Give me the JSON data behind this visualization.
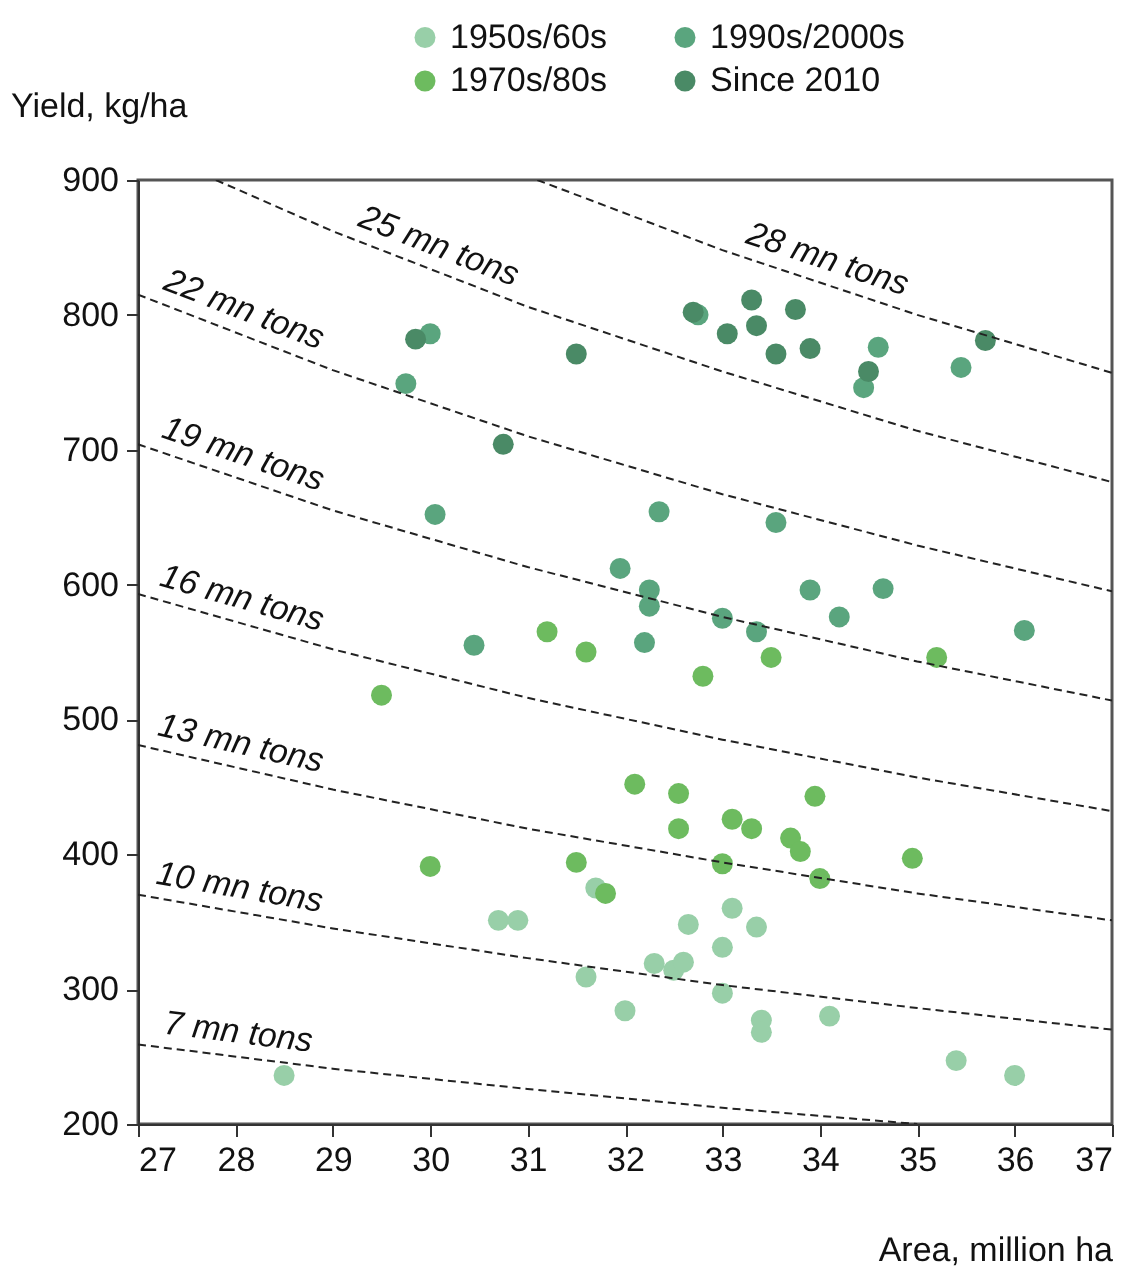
{
  "chart_data": {
    "type": "scatter",
    "ylabel": "Yield, kg/ha",
    "xlabel": "Area, million ha",
    "xlim": [
      27,
      37
    ],
    "xticks": [
      27,
      28,
      29,
      30,
      31,
      32,
      33,
      34,
      35,
      36,
      37
    ],
    "ylim": [
      200,
      900
    ],
    "yticks": [
      200,
      300,
      400,
      500,
      600,
      700,
      800,
      900
    ],
    "grid": false,
    "legend": "top",
    "marker": "circle",
    "series": [
      {
        "name": "1950s/60s",
        "color": "#98cfa8",
        "x": [
          28.5,
          30.7,
          30.9,
          31.7,
          31.6,
          32.0,
          32.3,
          32.5,
          32.6,
          32.65,
          33.0,
          33.0,
          33.1,
          33.35,
          33.4,
          33.4,
          34.1,
          35.4,
          36.0
        ],
        "values": [
          236,
          351,
          351,
          375,
          309,
          284,
          319,
          314,
          320,
          348,
          331,
          297,
          360,
          346,
          277,
          268,
          280,
          247,
          236
        ]
      },
      {
        "name": "1970s/80s",
        "color": "#6dbb5f",
        "x": [
          29.5,
          30.0,
          31.2,
          31.6,
          31.5,
          31.8,
          32.1,
          32.8,
          33.5,
          35.2,
          32.55,
          32.55,
          33.1,
          33.3,
          33.95,
          33.7,
          33.8,
          33.0,
          34.0,
          34.95
        ],
        "values": [
          518,
          391,
          565,
          550,
          394,
          371,
          452,
          532,
          546,
          546,
          445,
          419,
          426,
          419,
          443,
          412,
          402,
          393,
          382,
          397
        ]
      },
      {
        "name": "1990s/2000s",
        "color": "#5aa57e",
        "x": [
          30.0,
          29.75,
          30.05,
          31.95,
          30.45,
          32.75,
          34.6,
          34.45,
          35.45,
          32.35,
          33.55,
          32.25,
          32.25,
          33.9,
          34.65,
          34.2,
          33.0,
          33.35,
          36.1,
          32.2
        ],
        "values": [
          786,
          749,
          652,
          612,
          555,
          800,
          776,
          746,
          761,
          654,
          646,
          596,
          584,
          596,
          597,
          576,
          575,
          565,
          566,
          557
        ]
      },
      {
        "name": "Since 2010",
        "color": "#4a8a66",
        "x": [
          29.85,
          31.5,
          30.75,
          32.7,
          33.3,
          33.75,
          33.05,
          33.35,
          33.55,
          33.9,
          34.5,
          35.7
        ],
        "values": [
          782,
          771,
          704,
          802,
          811,
          804,
          786,
          792,
          771,
          775,
          758,
          781
        ]
      },
      {
        "name": "7 mn tons",
        "type": "line",
        "color": "#222222",
        "line_style": "dashed",
        "marker": "none",
        "x": [
          27,
          29,
          31,
          33,
          35
        ],
        "values": [
          259,
          241,
          226,
          212,
          200
        ]
      },
      {
        "name": "10 mn tons",
        "type": "line",
        "color": "#222222",
        "line_style": "dashed",
        "marker": "none",
        "x": [
          27,
          29,
          31,
          33,
          35,
          37
        ],
        "values": [
          370,
          345,
          323,
          303,
          286,
          270
        ]
      },
      {
        "name": "13 mn tons",
        "type": "line",
        "color": "#222222",
        "line_style": "dashed",
        "marker": "none",
        "x": [
          27,
          29,
          31,
          33,
          35,
          37
        ],
        "values": [
          481,
          448,
          419,
          394,
          371,
          351
        ]
      },
      {
        "name": "16 mn tons",
        "type": "line",
        "color": "#222222",
        "line_style": "dashed",
        "marker": "none",
        "x": [
          27,
          29,
          31,
          33,
          35,
          37
        ],
        "values": [
          593,
          552,
          516,
          485,
          457,
          432
        ]
      },
      {
        "name": "19 mn tons",
        "type": "line",
        "color": "#222222",
        "line_style": "dashed",
        "marker": "none",
        "x": [
          27,
          29,
          31,
          33,
          35,
          37
        ],
        "values": [
          704,
          655,
          613,
          576,
          543,
          514
        ]
      },
      {
        "name": "22 mn tons",
        "type": "line",
        "color": "#222222",
        "line_style": "dashed",
        "marker": "none",
        "x": [
          27,
          29,
          31,
          33,
          35,
          37
        ],
        "values": [
          815,
          759,
          710,
          667,
          629,
          595
        ]
      },
      {
        "name": "25 mn tons",
        "type": "line",
        "color": "#222222",
        "line_style": "dashed",
        "marker": "none",
        "x": [
          27.8,
          29,
          31,
          33,
          35,
          37
        ],
        "values": [
          900,
          862,
          806,
          758,
          714,
          676
        ]
      },
      {
        "name": "28 mn tons",
        "type": "line",
        "color": "#222222",
        "line_style": "dashed",
        "marker": "none",
        "x": [
          31.1,
          33,
          35,
          37
        ],
        "values": [
          900,
          848,
          800,
          757
        ]
      }
    ]
  }
}
